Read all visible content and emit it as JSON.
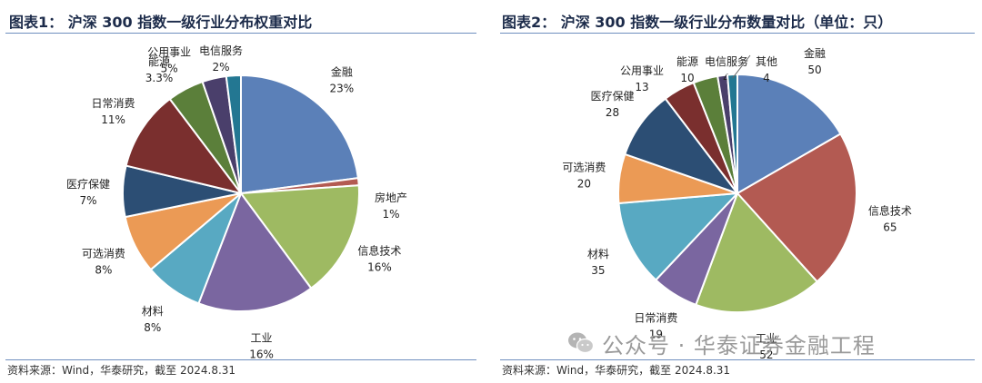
{
  "left": {
    "title": "图表1： 沪深 300 指数一级行业分布权重对比",
    "source": "资料来源：Wind，华泰研究，截至 2024.8.31"
  },
  "right": {
    "title": "图表2： 沪深 300 指数一级行业分布数量对比（单位：只）",
    "source": "资料来源：Wind，华泰研究，截至 2024.8.31"
  },
  "watermark": {
    "text": "公众号 · 华泰证券金融工程",
    "icon": "wechat-icon"
  },
  "chart_data": [
    {
      "type": "pie",
      "title": "沪深 300 指数一级行业分布权重对比",
      "slices": [
        {
          "name": "金融",
          "value": 23,
          "label": "23%",
          "color": "#5b80b8"
        },
        {
          "name": "房地产",
          "value": 1,
          "label": "1%",
          "color": "#b35a52"
        },
        {
          "name": "信息技术",
          "value": 16,
          "label": "16%",
          "color": "#9eba62"
        },
        {
          "name": "工业",
          "value": 16,
          "label": "16%",
          "color": "#7a66a0"
        },
        {
          "name": "材料",
          "value": 8,
          "label": "8%",
          "color": "#58a9c2"
        },
        {
          "name": "可选消费",
          "value": 8,
          "label": "8%",
          "color": "#eb9a55"
        },
        {
          "name": "医疗保健",
          "value": 7,
          "label": "7%",
          "color": "#2c4e74"
        },
        {
          "name": "日常消费",
          "value": 11,
          "label": "11%",
          "color": "#7a2f2e"
        },
        {
          "name": "公用事业",
          "value": 5,
          "label": "5%",
          "color": "#5b7f3a"
        },
        {
          "name": "能源",
          "value": 3.3,
          "label": "3.3%",
          "color": "#4a3f6b"
        },
        {
          "name": "电信服务",
          "value": 2,
          "label": "2%",
          "color": "#237792"
        }
      ]
    },
    {
      "type": "pie",
      "title": "沪深 300 指数一级行业分布数量对比（单位：只）",
      "slices": [
        {
          "name": "金融",
          "value": 50,
          "label": "50",
          "color": "#5b80b8"
        },
        {
          "name": "信息技术",
          "value": 65,
          "label": "65",
          "color": "#b35a52"
        },
        {
          "name": "工业",
          "value": 52,
          "label": "52",
          "color": "#9eba62"
        },
        {
          "name": "日常消费",
          "value": 19,
          "label": "19",
          "color": "#7a66a0"
        },
        {
          "name": "材料",
          "value": 35,
          "label": "35",
          "color": "#58a9c2"
        },
        {
          "name": "可选消费",
          "value": 20,
          "label": "20",
          "color": "#eb9a55"
        },
        {
          "name": "医疗保健",
          "value": 28,
          "label": "28",
          "color": "#2c4e74"
        },
        {
          "name": "公用事业",
          "value": 13,
          "label": "13",
          "color": "#7a2f2e"
        },
        {
          "name": "能源",
          "value": 10,
          "label": "10",
          "color": "#5b7f3a"
        },
        {
          "name": "电信服务",
          "value": 4,
          "label": "4",
          "color": "#4a3f6b"
        },
        {
          "name": "其他",
          "value": 4,
          "label": "4",
          "color": "#237792"
        }
      ]
    }
  ]
}
